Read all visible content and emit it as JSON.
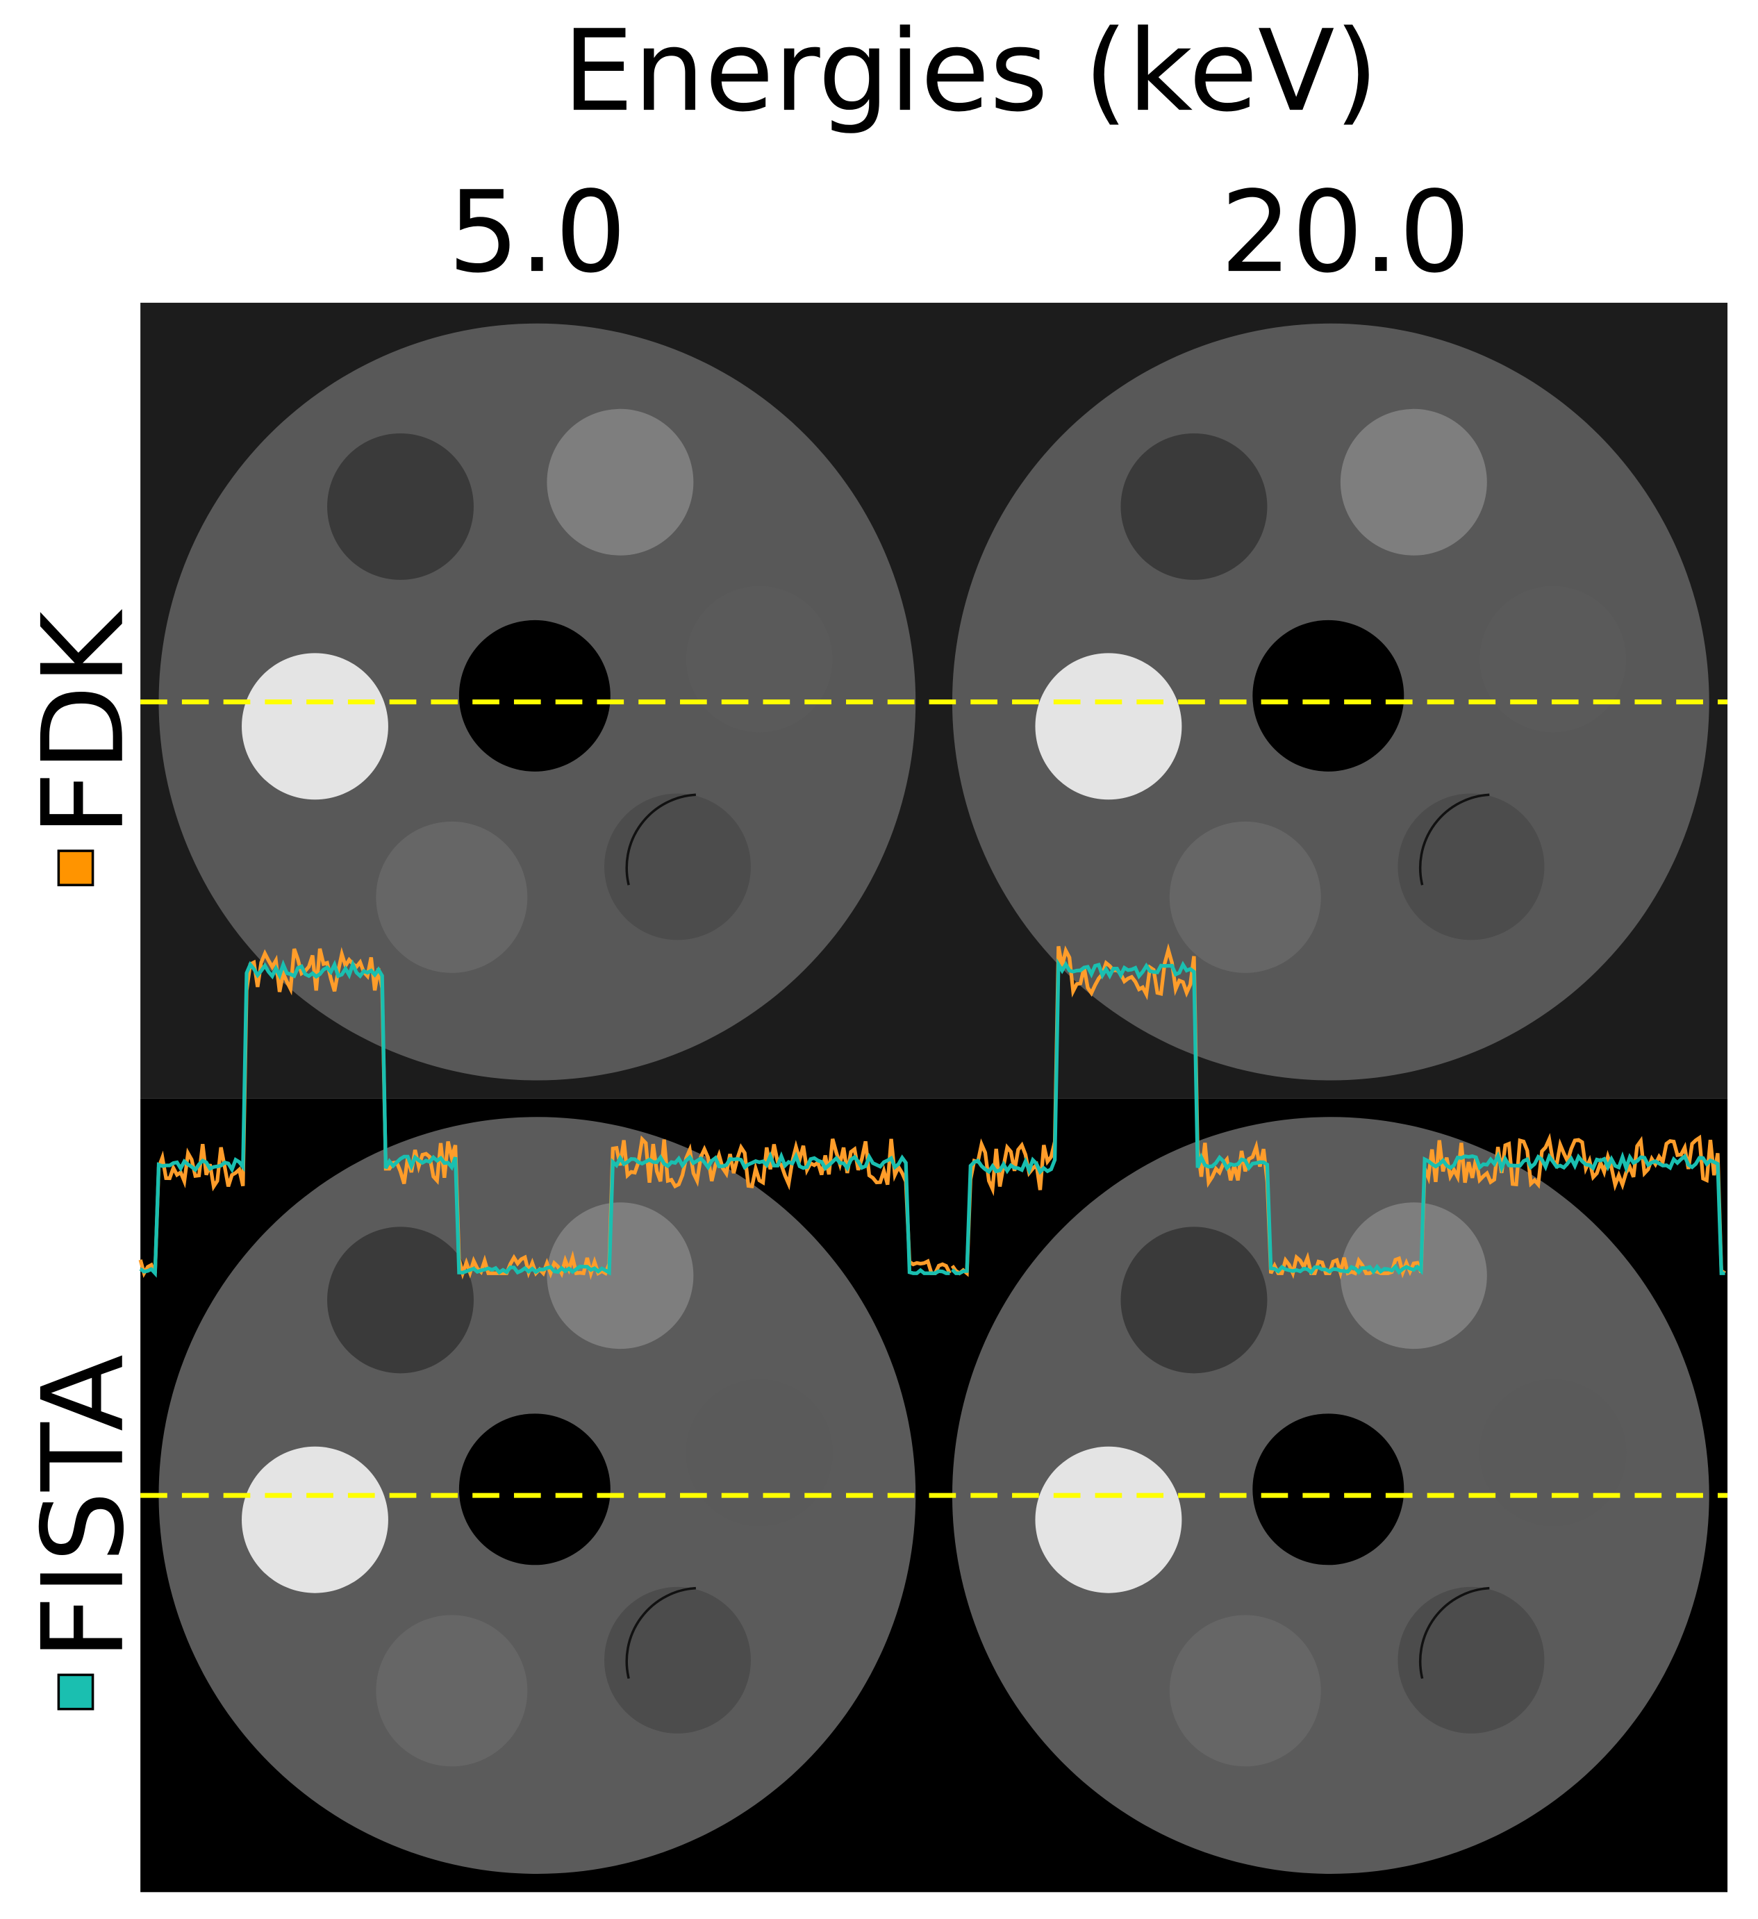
{
  "figure": {
    "title": "Energies (keV)",
    "columns": [
      "5.0",
      "20.0"
    ],
    "rows": [
      "FDK",
      "FISTA"
    ]
  }
}
